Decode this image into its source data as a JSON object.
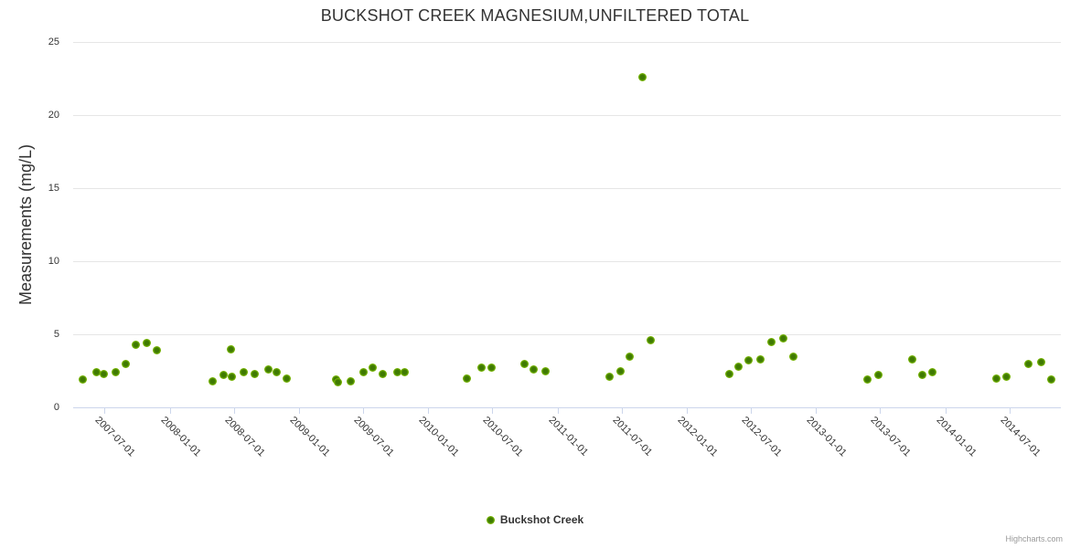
{
  "credit": "Highcharts.com",
  "colors": {
    "marker_outer": "#84c303",
    "marker_inner": "#3f7a02",
    "grid": "#e6e6e6",
    "axis": "#ccd6eb",
    "label": "#333333",
    "title": "#333333",
    "credit": "#999999"
  },
  "chart_data": {
    "type": "scatter",
    "title": "BUCKSHOT CREEK MAGNESIUM,UNFILTERED TOTAL",
    "xlabel": "",
    "ylabel": "Measurements (mg/L)",
    "ylim": [
      0,
      25
    ],
    "yticks": [
      0,
      5,
      10,
      15,
      20,
      25
    ],
    "grid": true,
    "legend_position": "bottom-center",
    "x_domain": [
      "2007-04-03",
      "2014-11-24"
    ],
    "xticks": [
      "2007-07-01",
      "2008-01-01",
      "2008-07-01",
      "2009-01-01",
      "2009-07-01",
      "2010-01-01",
      "2010-07-01",
      "2011-01-01",
      "2011-07-01",
      "2012-01-01",
      "2012-07-01",
      "2013-01-01",
      "2013-07-01",
      "2014-01-01",
      "2014-07-01"
    ],
    "series": [
      {
        "name": "Buckshot Creek",
        "points": [
          {
            "x": "2007-05-01",
            "y": 1.9
          },
          {
            "x": "2007-06-08",
            "y": 2.4
          },
          {
            "x": "2007-06-28",
            "y": 2.3
          },
          {
            "x": "2007-08-01",
            "y": 2.4
          },
          {
            "x": "2007-08-29",
            "y": 3.0
          },
          {
            "x": "2007-09-27",
            "y": 4.3
          },
          {
            "x": "2007-10-28",
            "y": 4.4
          },
          {
            "x": "2007-11-26",
            "y": 3.9
          },
          {
            "x": "2008-05-01",
            "y": 1.8
          },
          {
            "x": "2008-06-02",
            "y": 2.2
          },
          {
            "x": "2008-06-23",
            "y": 4.0
          },
          {
            "x": "2008-06-24",
            "y": 2.1
          },
          {
            "x": "2008-07-29",
            "y": 2.4
          },
          {
            "x": "2008-08-27",
            "y": 2.3
          },
          {
            "x": "2008-10-07",
            "y": 2.6
          },
          {
            "x": "2008-10-28",
            "y": 2.4
          },
          {
            "x": "2008-11-26",
            "y": 2.0
          },
          {
            "x": "2009-04-15",
            "y": 1.9
          },
          {
            "x": "2009-04-21",
            "y": 1.7
          },
          {
            "x": "2009-05-26",
            "y": 1.8
          },
          {
            "x": "2009-07-01",
            "y": 2.4
          },
          {
            "x": "2009-07-28",
            "y": 2.7
          },
          {
            "x": "2009-08-25",
            "y": 2.3
          },
          {
            "x": "2009-10-06",
            "y": 2.4
          },
          {
            "x": "2009-10-26",
            "y": 2.4
          },
          {
            "x": "2010-04-19",
            "y": 2.0
          },
          {
            "x": "2010-06-01",
            "y": 2.7
          },
          {
            "x": "2010-06-28",
            "y": 2.7
          },
          {
            "x": "2010-10-01",
            "y": 3.0
          },
          {
            "x": "2010-10-25",
            "y": 2.6
          },
          {
            "x": "2010-11-29",
            "y": 2.5
          },
          {
            "x": "2011-05-27",
            "y": 2.1
          },
          {
            "x": "2011-06-27",
            "y": 2.5
          },
          {
            "x": "2011-07-25",
            "y": 3.5
          },
          {
            "x": "2011-08-29",
            "y": 22.6
          },
          {
            "x": "2011-09-21",
            "y": 4.6
          },
          {
            "x": "2012-04-30",
            "y": 2.3
          },
          {
            "x": "2012-05-28",
            "y": 2.8
          },
          {
            "x": "2012-06-25",
            "y": 3.2
          },
          {
            "x": "2012-07-27",
            "y": 3.3
          },
          {
            "x": "2012-08-27",
            "y": 4.5
          },
          {
            "x": "2012-10-01",
            "y": 4.7
          },
          {
            "x": "2012-10-29",
            "y": 3.5
          },
          {
            "x": "2013-05-27",
            "y": 1.9
          },
          {
            "x": "2013-06-25",
            "y": 2.2
          },
          {
            "x": "2013-09-30",
            "y": 3.3
          },
          {
            "x": "2013-10-29",
            "y": 2.2
          },
          {
            "x": "2013-11-26",
            "y": 2.4
          },
          {
            "x": "2014-05-26",
            "y": 2.0
          },
          {
            "x": "2014-06-23",
            "y": 2.1
          },
          {
            "x": "2014-08-25",
            "y": 3.0
          },
          {
            "x": "2014-09-29",
            "y": 3.1
          },
          {
            "x": "2014-10-27",
            "y": 1.9
          }
        ]
      }
    ]
  }
}
